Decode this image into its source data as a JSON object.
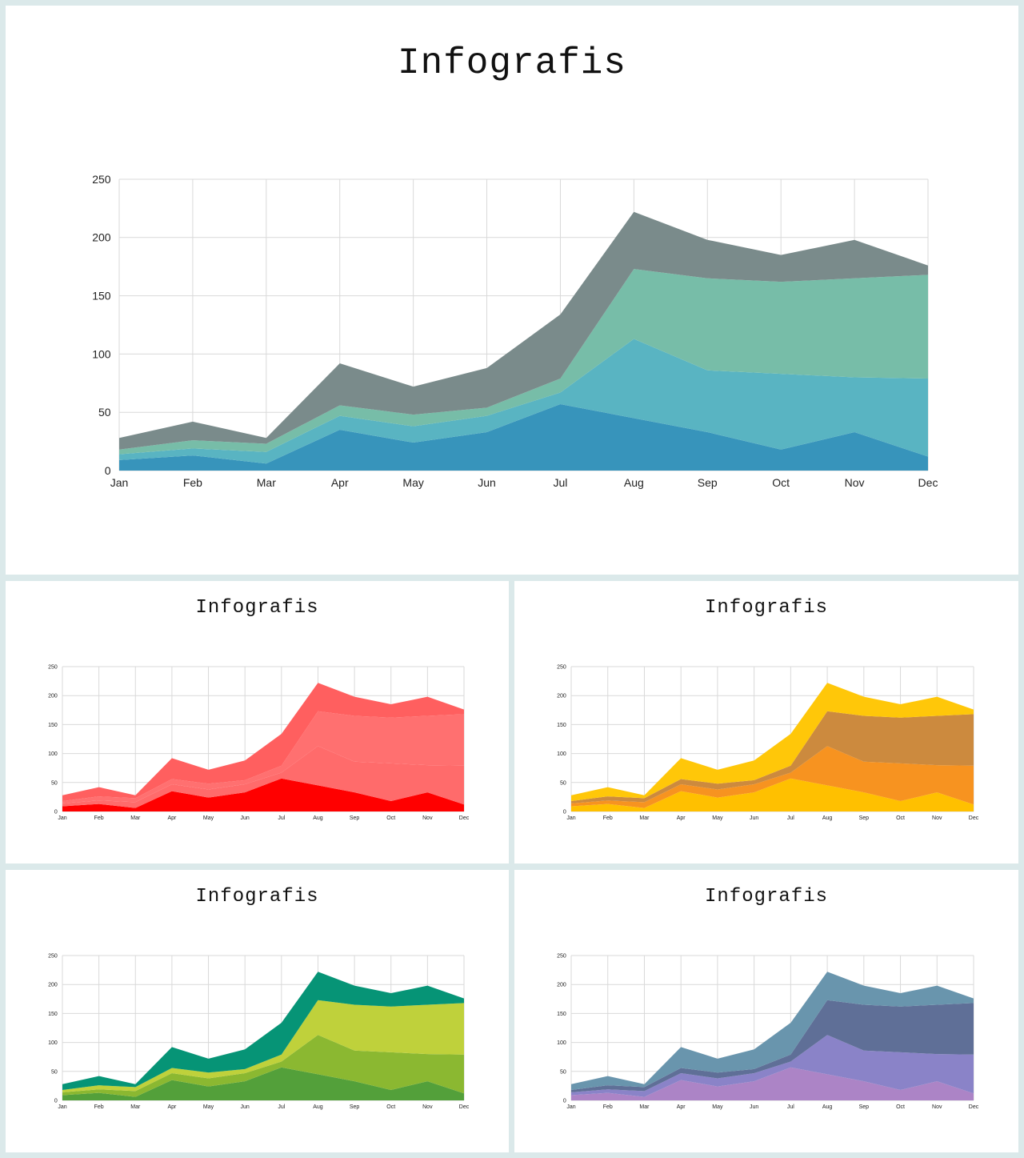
{
  "chart_data": [
    {
      "type": "area",
      "stacked": true,
      "title": "Infografis",
      "categories": [
        "Jan",
        "Feb",
        "Mar",
        "Apr",
        "May",
        "Jun",
        "Jul",
        "Aug",
        "Sep",
        "Oct",
        "Nov",
        "Dec"
      ],
      "ylim": [
        0,
        250
      ],
      "yticks": [
        0,
        50,
        100,
        150,
        200,
        250
      ],
      "grid": true,
      "series": [
        {
          "values": [
            9,
            13,
            6,
            35,
            24,
            33,
            57,
            45,
            33,
            18,
            33,
            12
          ],
          "color": "#3794bb"
        },
        {
          "values": [
            5,
            6,
            10,
            12,
            14,
            14,
            10,
            68,
            53,
            65,
            47,
            67
          ],
          "color": "#59b4c2"
        },
        {
          "values": [
            4,
            7,
            7,
            9,
            10,
            7,
            12,
            60,
            79,
            79,
            85,
            89
          ],
          "color": "#77bda8"
        },
        {
          "values": [
            10,
            16,
            5,
            36,
            24,
            34,
            55,
            49,
            33,
            23,
            33,
            8
          ],
          "color": "#7a8b8b"
        }
      ]
    },
    {
      "type": "area",
      "stacked": true,
      "title": "Infografis",
      "categories": [
        "Jan",
        "Feb",
        "Mar",
        "Apr",
        "May",
        "Jun",
        "Jul",
        "Aug",
        "Sep",
        "Oct",
        "Nov",
        "Dec"
      ],
      "ylim": [
        0,
        250
      ],
      "yticks": [
        0,
        50,
        100,
        150,
        200,
        250
      ],
      "grid": true,
      "series": [
        {
          "values": [
            9,
            13,
            6,
            35,
            24,
            33,
            57,
            45,
            33,
            18,
            33,
            12
          ],
          "color": "#ff0000"
        },
        {
          "values": [
            5,
            6,
            10,
            12,
            14,
            14,
            10,
            68,
            53,
            65,
            47,
            67
          ],
          "color": "#ff6b6b"
        },
        {
          "values": [
            4,
            7,
            7,
            9,
            10,
            7,
            12,
            60,
            79,
            79,
            85,
            89
          ],
          "color": "#ff7070"
        },
        {
          "values": [
            10,
            16,
            5,
            36,
            24,
            34,
            55,
            49,
            33,
            23,
            33,
            8
          ],
          "color": "#ff5f5f"
        }
      ]
    },
    {
      "type": "area",
      "stacked": true,
      "title": "Infografis",
      "categories": [
        "Jan",
        "Feb",
        "Mar",
        "Apr",
        "May",
        "Jun",
        "Jul",
        "Aug",
        "Sep",
        "Oct",
        "Nov",
        "Dec"
      ],
      "ylim": [
        0,
        250
      ],
      "yticks": [
        0,
        50,
        100,
        150,
        200,
        250
      ],
      "grid": true,
      "series": [
        {
          "values": [
            9,
            13,
            6,
            35,
            24,
            33,
            57,
            45,
            33,
            18,
            33,
            12
          ],
          "color": "#ffc000"
        },
        {
          "values": [
            5,
            6,
            10,
            12,
            14,
            14,
            10,
            68,
            53,
            65,
            47,
            67
          ],
          "color": "#f79320"
        },
        {
          "values": [
            4,
            7,
            7,
            9,
            10,
            7,
            12,
            60,
            79,
            79,
            85,
            89
          ],
          "color": "#cc8a3e"
        },
        {
          "values": [
            10,
            16,
            5,
            36,
            24,
            34,
            55,
            49,
            33,
            23,
            33,
            8
          ],
          "color": "#ffc709"
        }
      ]
    },
    {
      "type": "area",
      "stacked": true,
      "title": "Infografis",
      "categories": [
        "Jan",
        "Feb",
        "Mar",
        "Apr",
        "May",
        "Jun",
        "Jul",
        "Aug",
        "Sep",
        "Oct",
        "Nov",
        "Dec"
      ],
      "ylim": [
        0,
        250
      ],
      "yticks": [
        0,
        50,
        100,
        150,
        200,
        250
      ],
      "grid": true,
      "series": [
        {
          "values": [
            9,
            13,
            6,
            35,
            24,
            33,
            57,
            45,
            33,
            18,
            33,
            12
          ],
          "color": "#53a03a"
        },
        {
          "values": [
            5,
            6,
            10,
            12,
            14,
            14,
            10,
            68,
            53,
            65,
            47,
            67
          ],
          "color": "#8bb831"
        },
        {
          "values": [
            4,
            7,
            7,
            9,
            10,
            7,
            12,
            60,
            79,
            79,
            85,
            89
          ],
          "color": "#bfd13b"
        },
        {
          "values": [
            10,
            16,
            5,
            36,
            24,
            34,
            55,
            49,
            33,
            23,
            33,
            8
          ],
          "color": "#069476"
        }
      ]
    },
    {
      "type": "area",
      "stacked": true,
      "title": "Infografis",
      "categories": [
        "Jan",
        "Feb",
        "Mar",
        "Apr",
        "May",
        "Jun",
        "Jul",
        "Aug",
        "Sep",
        "Oct",
        "Nov",
        "Dec"
      ],
      "ylim": [
        0,
        250
      ],
      "yticks": [
        0,
        50,
        100,
        150,
        200,
        250
      ],
      "grid": true,
      "series": [
        {
          "values": [
            9,
            13,
            6,
            35,
            24,
            33,
            57,
            45,
            33,
            18,
            33,
            12
          ],
          "color": "#ac84c6"
        },
        {
          "values": [
            5,
            6,
            10,
            12,
            14,
            14,
            10,
            68,
            53,
            65,
            47,
            67
          ],
          "color": "#8a83c8"
        },
        {
          "values": [
            4,
            7,
            7,
            9,
            10,
            7,
            12,
            60,
            79,
            79,
            85,
            89
          ],
          "color": "#5f6f97"
        },
        {
          "values": [
            10,
            16,
            5,
            36,
            24,
            34,
            55,
            49,
            33,
            23,
            33,
            8
          ],
          "color": "#6995ad"
        }
      ]
    }
  ]
}
